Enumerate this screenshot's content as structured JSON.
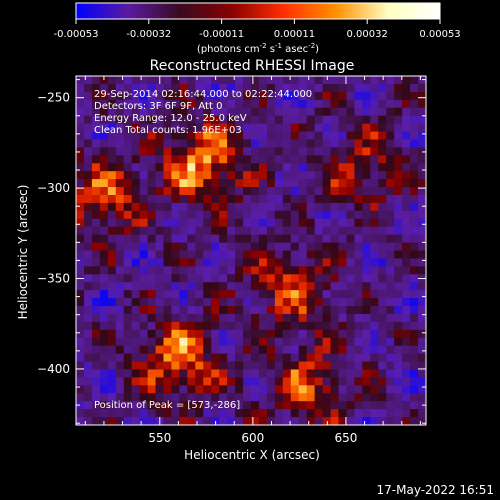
{
  "colorbar": {
    "ticks": [
      "-0.00053",
      "-0.00032",
      "-0.00011",
      "0.00011",
      "0.00032",
      "0.00053"
    ],
    "unit_line": "(photons cm",
    "unit_exp1": "-2",
    "unit_mid": " s",
    "unit_exp2": "-1",
    "unit_mid2": " asec",
    "unit_exp3": "-2",
    "unit_close": ")",
    "stops": [
      "#0000ff",
      "#5a1aa0",
      "#3a0a20",
      "#8a0000",
      "#ff3000",
      "#ff9000",
      "#ffffc0",
      "#ffffff"
    ]
  },
  "chart_data": {
    "type": "heatmap",
    "title": "Reconstructed RHESSI Image",
    "xlabel": "Heliocentric X (arcsec)",
    "ylabel": "Heliocentric Y (arcsec)",
    "xlim": [
      505,
      693
    ],
    "ylim": [
      -431,
      -238
    ],
    "xticks": [
      550,
      600,
      650
    ],
    "yticks": [
      -250,
      -300,
      -350,
      -400
    ],
    "annotations": {
      "time": "29-Sep-2014 02:16:44.000 to 02:22:44.000",
      "detectors": "Detectors: 3F 6F 9F, Att 0",
      "energy": "Energy Range: 12.0 - 25.0 keV",
      "clean": "Clean    Total counts: 1.96E+03",
      "peak": "Position of Peak = [573,-286]"
    },
    "bright_sources": [
      {
        "x": 573,
        "y": -286,
        "level": 1.0
      },
      {
        "x": 560,
        "y": -395,
        "level": 0.9
      },
      {
        "x": 620,
        "y": -355,
        "level": 0.7
      },
      {
        "x": 520,
        "y": -305,
        "level": 0.75
      },
      {
        "x": 630,
        "y": -410,
        "level": 0.7
      },
      {
        "x": 660,
        "y": -290,
        "level": 0.55
      }
    ]
  },
  "footer": {
    "date": "17-May-2022 16:51"
  }
}
